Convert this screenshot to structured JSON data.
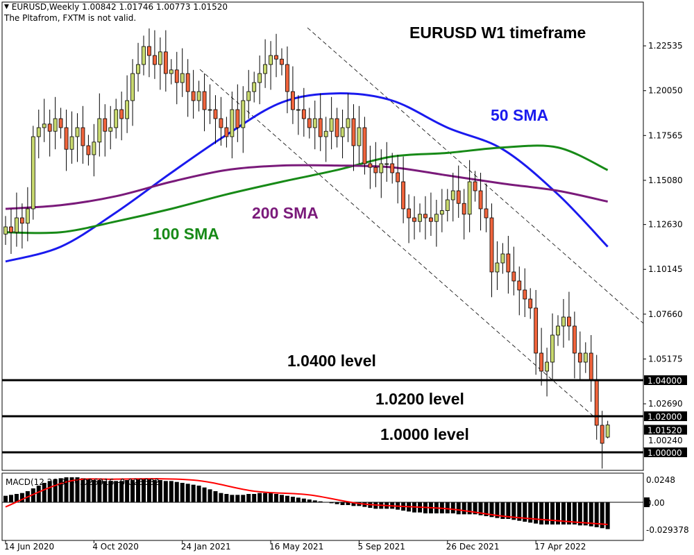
{
  "header": {
    "symbol_line": "EURUSD,Weekly  1.00842 1.01746 1.00773 1.01520",
    "warning": "The Pltafrom, FXTM is not valid.",
    "collapse_icon": "triangle-down-icon"
  },
  "annotations": {
    "title": "EURUSD W1 timeframe",
    "sma50": "50 SMA",
    "sma100": "100 SMA",
    "sma200": "200 SMA",
    "level1": "1.0400 level",
    "level2": "1.0200 level",
    "level3": "1.0000 level"
  },
  "macd_label": "MACD(12,26,9) -0.026916 -0.023582",
  "colors": {
    "bull": "#c8d96f",
    "bear": "#f0643c",
    "sma50": "#1a1aee",
    "sma100": "#178a17",
    "sma200": "#7a1a7a",
    "signal": "#ff0000",
    "macd": "#000000"
  },
  "chart_data": {
    "type": "candlestick",
    "interval": "weekly",
    "start": "14 Jun 2020",
    "last_candle": {
      "open": 1.00842,
      "high": 1.01746,
      "low": 1.00773,
      "close": 1.0152
    },
    "close": [
      1.125,
      1.122,
      1.13,
      1.127,
      1.135,
      1.175,
      1.18,
      1.182,
      1.178,
      1.185,
      1.18,
      1.168,
      1.175,
      1.18,
      1.17,
      1.165,
      1.172,
      1.185,
      1.178,
      1.18,
      1.19,
      1.185,
      1.195,
      1.21,
      1.215,
      1.225,
      1.22,
      1.215,
      1.222,
      1.21,
      1.212,
      1.205,
      1.21,
      1.2,
      1.195,
      1.2,
      1.19,
      1.19,
      1.185,
      1.18,
      1.175,
      1.19,
      1.18,
      1.195,
      1.2,
      1.205,
      1.21,
      1.215,
      1.22,
      1.218,
      1.215,
      1.2,
      1.19,
      1.19,
      1.185,
      1.18,
      1.185,
      1.175,
      1.178,
      1.185,
      1.175,
      1.18,
      1.185,
      1.17,
      1.18,
      1.16,
      1.158,
      1.155,
      1.16,
      1.16,
      1.155,
      1.15,
      1.135,
      1.13,
      1.128,
      1.132,
      1.13,
      1.128,
      1.132,
      1.134,
      1.14,
      1.145,
      1.138,
      1.132,
      1.15,
      1.145,
      1.135,
      1.13,
      1.1,
      1.105,
      1.11,
      1.1,
      1.095,
      1.09,
      1.085,
      1.08,
      1.055,
      1.045,
      1.05,
      1.065,
      1.07,
      1.075,
      1.07,
      1.055,
      1.05,
      1.055,
      1.04,
      1.015,
      1.005,
      1.0152
    ],
    "sma": [
      {
        "name": "50 SMA",
        "x": [
          "14 Jun 2020",
          "23 Aug 2020",
          "1 Nov 2020",
          "10 Jan 2021",
          "21 Mar 2021",
          "30 May 2021",
          "8 Aug 2021",
          "17 Oct 2021",
          "26 Dec 2021",
          "6 Mar 2022",
          "15 May 2022",
          "17 Jul 2022"
        ],
        "values": [
          1.1058,
          1.114,
          1.133,
          1.155,
          1.176,
          1.194,
          1.199,
          1.195,
          1.18,
          1.168,
          1.143,
          1.114
        ]
      },
      {
        "name": "100 SMA",
        "x": [
          "14 Jun 2020",
          "23 Aug 2020",
          "1 Nov 2020",
          "10 Jan 2021",
          "21 Mar 2021",
          "30 May 2021",
          "8 Aug 2021",
          "17 Oct 2021",
          "26 Dec 2021",
          "6 Mar 2022",
          "15 May 2022",
          "17 Jul 2022"
        ],
        "values": [
          1.122,
          1.122,
          1.128,
          1.135,
          1.143,
          1.15,
          1.1565,
          1.164,
          1.166,
          1.169,
          1.169,
          1.1565
        ]
      },
      {
        "name": "200 SMA",
        "x": [
          "14 Jun 2020",
          "23 Aug 2020",
          "1 Nov 2020",
          "10 Jan 2021",
          "21 Mar 2021",
          "30 May 2021",
          "8 Aug 2021",
          "17 Oct 2021",
          "26 Dec 2021",
          "6 Mar 2022",
          "15 May 2022",
          "17 Jul 2022"
        ],
        "values": [
          1.135,
          1.137,
          1.142,
          1.15,
          1.1565,
          1.159,
          1.159,
          1.158,
          1.1535,
          1.149,
          1.145,
          1.139
        ]
      }
    ],
    "levels": [
      1.04,
      1.02,
      1.0
    ],
    "y_ticks": [
      "1.22535",
      "1.20050",
      "1.17565",
      "1.15080",
      "1.12630",
      "1.10145",
      "1.07660",
      "1.05175",
      "1.02690",
      "1.00240"
    ],
    "price_tags": [
      "1.04000",
      "1.02000",
      "1.01520",
      "1.00000"
    ],
    "x_ticks": [
      "14 Jun 2020",
      "4 Oct 2020",
      "24 Jan 2021",
      "16 May 2021",
      "5 Sep 2021",
      "26 Dec 2021",
      "17 Apr 2022"
    ],
    "macd": {
      "y_ticks": [
        "0.0248",
        "0.00",
        "-0.029378"
      ],
      "histogram": [
        0.007,
        0.008,
        0.009,
        0.01,
        0.012,
        0.015,
        0.018,
        0.021,
        0.023,
        0.025,
        0.026,
        0.027,
        0.027,
        0.027,
        0.026,
        0.025,
        0.024,
        0.024,
        0.023,
        0.023,
        0.023,
        0.023,
        0.024,
        0.024,
        0.025,
        0.025,
        0.025,
        0.024,
        0.024,
        0.023,
        0.023,
        0.022,
        0.021,
        0.02,
        0.019,
        0.018,
        0.016,
        0.014,
        0.012,
        0.01,
        0.009,
        0.008,
        0.008,
        0.008,
        0.009,
        0.009,
        0.01,
        0.01,
        0.01,
        0.009,
        0.008,
        0.007,
        0.006,
        0.005,
        0.004,
        0.003,
        0.002,
        0.001,
        0.0,
        -0.001,
        -0.002,
        -0.003,
        -0.003,
        -0.004,
        -0.004,
        -0.005,
        -0.006,
        -0.007,
        -0.007,
        -0.007,
        -0.007,
        -0.008,
        -0.009,
        -0.01,
        -0.011,
        -0.011,
        -0.012,
        -0.012,
        -0.012,
        -0.012,
        -0.012,
        -0.012,
        -0.013,
        -0.013,
        -0.013,
        -0.013,
        -0.014,
        -0.015,
        -0.016,
        -0.017,
        -0.018,
        -0.018,
        -0.019,
        -0.02,
        -0.021,
        -0.022,
        -0.023,
        -0.024,
        -0.024,
        -0.024,
        -0.024,
        -0.024,
        -0.024,
        -0.024,
        -0.025,
        -0.025,
        -0.026,
        -0.027,
        -0.028,
        -0.029
      ],
      "signal": {
        "x": [
          "14 Jun 2020",
          "30 Aug 2020",
          "1 Nov 2020",
          "7 Feb 2021",
          "25 Apr 2021",
          "4 Jul 2021",
          "12 Sep 2021",
          "26 Dec 2021",
          "6 Mar 2022",
          "15 May 2022",
          "17 Jul 2022"
        ],
        "values": [
          -0.005,
          0.022,
          0.025,
          0.024,
          0.012,
          0.008,
          -0.002,
          -0.007,
          -0.015,
          -0.02,
          -0.024
        ]
      }
    }
  }
}
